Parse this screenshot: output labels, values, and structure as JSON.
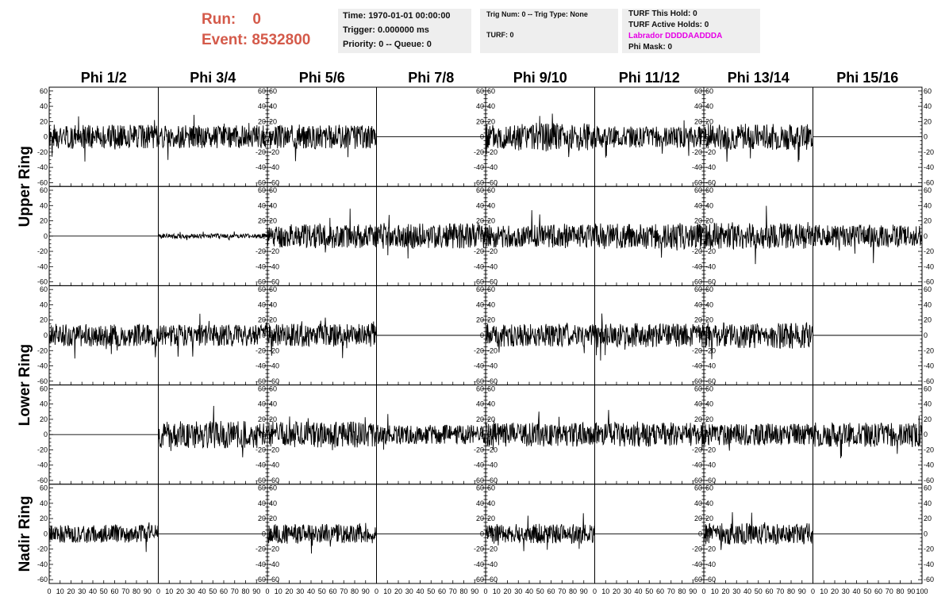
{
  "header": {
    "run_label": "Run:",
    "run_value": "0",
    "event_label": "Event:",
    "event_value": "8532800",
    "time_line": "Time: 1970-01-01 00:00:00",
    "trigger_line": "Trigger: 0.000000 ms",
    "priority_line": "Priority: 0 -- Queue: 0",
    "trig_num_line": "Trig Num: 0 -- Trig Type: None",
    "turf_line": "TURF: 0",
    "turf_hold_line": "TURF This Hold: 0",
    "turf_active_line": "TURF Active Holds: 0",
    "labrador_line": "Labrador DDDDAADDDA",
    "phi_mask_line": "Phi Mask: 0",
    "labrador_color": "#e600e6",
    "run_color": "#d45a4a"
  },
  "chart_data": {
    "type": "line",
    "columns": [
      "Phi 1/2",
      "Phi 3/4",
      "Phi 5/6",
      "Phi 7/8",
      "Phi 9/10",
      "Phi 11/12",
      "Phi 13/14",
      "Phi 15/16"
    ],
    "ring_labels": [
      "Upper Ring",
      "Lower Ring",
      "Nadir Ring"
    ],
    "ylim": [
      -65,
      65
    ],
    "y_ticks": [
      "60",
      "40",
      "20",
      "0",
      "-20",
      "-40",
      "-60"
    ],
    "xlim": [
      0,
      100
    ],
    "x_ticks": [
      "0",
      "10",
      "20",
      "30",
      "40",
      "50",
      "60",
      "70",
      "80",
      "90",
      "100"
    ],
    "x_tick_values": [
      0,
      10,
      20,
      30,
      40,
      50,
      60,
      70,
      80,
      90,
      100
    ],
    "traces": [
      [
        {
          "amp": 16,
          "seed": 1
        },
        {
          "amp": 15,
          "seed": 2
        },
        {
          "amp": 16,
          "seed": 3
        },
        {
          "amp": 0,
          "seed": 4
        },
        {
          "amp": 18,
          "seed": 5
        },
        {
          "amp": 14,
          "seed": 6
        },
        {
          "amp": 17,
          "seed": 7
        },
        {
          "amp": 0,
          "seed": 8
        }
      ],
      [
        {
          "amp": 0,
          "seed": 9
        },
        {
          "amp": 3,
          "seed": 10
        },
        {
          "amp": 16,
          "seed": 11
        },
        {
          "amp": 17,
          "seed": 12
        },
        {
          "amp": 15,
          "seed": 13
        },
        {
          "amp": 17,
          "seed": 14
        },
        {
          "amp": 17,
          "seed": 15
        },
        {
          "amp": 15,
          "seed": 16
        }
      ],
      [
        {
          "amp": 15,
          "seed": 17
        },
        {
          "amp": 14,
          "seed": 18
        },
        {
          "amp": 15,
          "seed": 19
        },
        {
          "amp": 0,
          "seed": 20
        },
        {
          "amp": 15,
          "seed": 21
        },
        {
          "amp": 16,
          "seed": 22
        },
        {
          "amp": 17,
          "seed": 23
        },
        {
          "amp": 0,
          "seed": 24
        }
      ],
      [
        {
          "amp": 0,
          "seed": 25
        },
        {
          "amp": 18,
          "seed": 26
        },
        {
          "amp": 17,
          "seed": 27
        },
        {
          "amp": 13,
          "seed": 28
        },
        {
          "amp": 16,
          "seed": 29
        },
        {
          "amp": 16,
          "seed": 30
        },
        {
          "amp": 14,
          "seed": 31
        },
        {
          "amp": 16,
          "seed": 32
        }
      ],
      [
        {
          "amp": 12,
          "seed": 33
        },
        {
          "amp": 0,
          "seed": 34
        },
        {
          "amp": 13,
          "seed": 35
        },
        {
          "amp": 0,
          "seed": 36
        },
        {
          "amp": 13,
          "seed": 37
        },
        {
          "amp": 0,
          "seed": 38
        },
        {
          "amp": 14,
          "seed": 39
        },
        {
          "amp": 0,
          "seed": 40
        }
      ]
    ]
  }
}
